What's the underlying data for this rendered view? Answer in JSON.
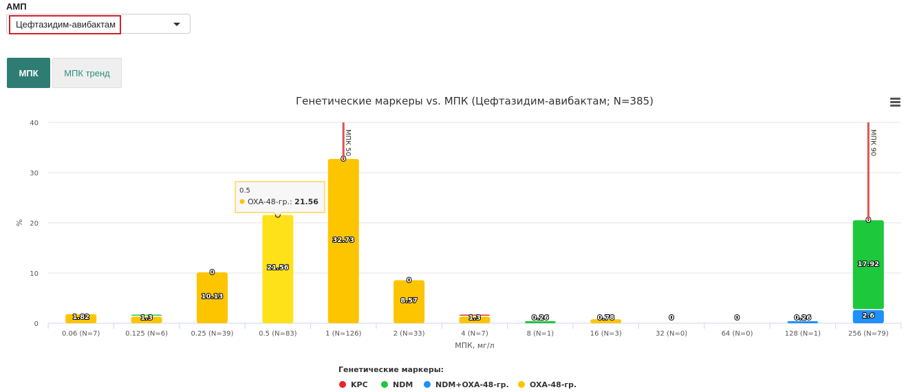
{
  "controls": {
    "amp_label": "АМП",
    "amp_selected": "Цефтазидим-авибактам"
  },
  "tabs": [
    {
      "label": "МПК",
      "active": true
    },
    {
      "label": "МПК тренд",
      "active": false
    }
  ],
  "chart_data": {
    "type": "bar",
    "stacked": true,
    "title": "Генетические маркеры vs. МПК (Цефтазидим-авибактам; N=385)",
    "xlabel": "МПК, мг/л",
    "ylabel": "%",
    "ylim": [
      0,
      40
    ],
    "yticks": [
      0,
      10,
      20,
      30,
      40
    ],
    "grid": true,
    "categories": [
      "0.06 (N=7)",
      "0.125 (N=6)",
      "0.25 (N=39)",
      "0.5 (N=83)",
      "1 (N=126)",
      "2 (N=33)",
      "4 (N=7)",
      "8 (N=1)",
      "16 (N=3)",
      "32 (N=0)",
      "64 (N=0)",
      "128 (N=1)",
      "256 (N=79)"
    ],
    "series": [
      {
        "name": "KPC",
        "color": "#e8262a",
        "values": [
          0,
          0,
          0,
          0,
          0,
          0,
          0.26,
          0,
          0,
          0,
          0,
          0,
          0
        ]
      },
      {
        "name": "NDM",
        "color": "#1ec83c",
        "values": [
          0,
          0.26,
          0,
          0,
          0,
          0,
          0,
          0.26,
          0,
          0,
          0,
          0,
          17.92
        ]
      },
      {
        "name": "NDM+OXA-48-гр.",
        "color": "#1e90ff",
        "values": [
          0,
          0,
          0,
          0,
          0,
          0,
          0,
          0,
          0,
          0,
          0,
          0.26,
          2.6
        ]
      },
      {
        "name": "OXA-48-гр.",
        "color": "#fcc500",
        "values": [
          1.82,
          1.3,
          10.13,
          21.56,
          32.73,
          8.57,
          1.3,
          0,
          0.78,
          0,
          0,
          0,
          0
        ]
      }
    ],
    "data_labels": [
      "1.82",
      "1.3",
      "10.13",
      "21.56",
      "32.73",
      "8.57",
      "1.3",
      "0.26",
      "0.78",
      "0",
      "0",
      "0.26",
      "17.92",
      "2.6"
    ],
    "total_labels": [
      "0",
      "0",
      "0",
      "0",
      "0",
      "0",
      "0",
      "0",
      "0"
    ],
    "highlighted_index": 3,
    "highlight_color": "#ffe11a",
    "plot_lines": [
      {
        "label": "МПК 50",
        "category_index": 4,
        "color": "#e05050"
      },
      {
        "label": "МПК 90",
        "category_index": 12,
        "color": "#e05050"
      }
    ],
    "tooltip": {
      "header": "0.5",
      "series": "OXA-48-гр.",
      "value": "21.56"
    },
    "legend": {
      "title": "Генетические маркеры:",
      "position": "bottom-center"
    }
  }
}
